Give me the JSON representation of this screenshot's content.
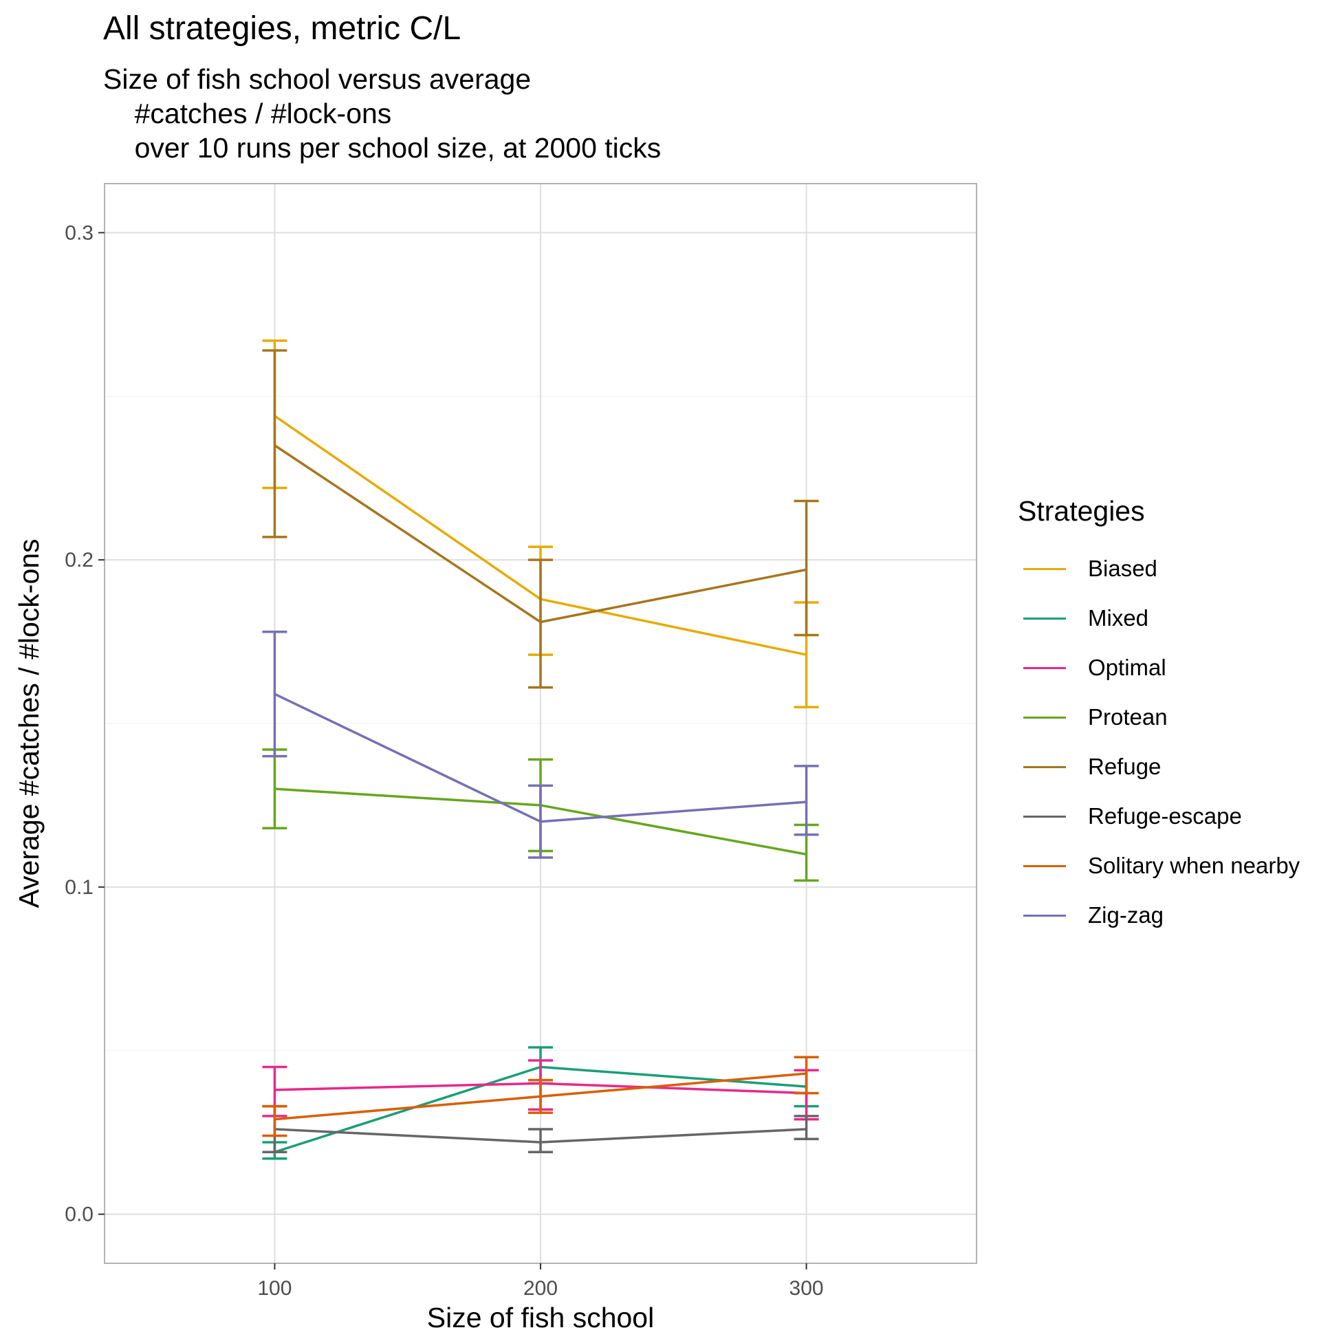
{
  "chart_data": {
    "type": "line",
    "title": "All strategies, metric C/L",
    "subtitle": "Size of fish school versus average\n    #catches / #lock-ons\n    over 10 runs per school size, at 2000 ticks",
    "xlabel": "Size of fish school",
    "ylabel": "Average #catches / #lock-ons",
    "x": [
      100,
      200,
      300
    ],
    "xlim": [
      36,
      364
    ],
    "ylim": [
      -0.015,
      0.315
    ],
    "xticks": [
      "100",
      "200",
      "300"
    ],
    "yticks": [
      "0.0",
      "0.1",
      "0.2",
      "0.3"
    ],
    "grid": true,
    "legend_title": "Strategies",
    "legend_position": "right",
    "series": [
      {
        "name": "Biased",
        "color": "#E6AB02",
        "values": [
          0.244,
          0.188,
          0.171
        ],
        "lower": [
          0.222,
          0.171,
          0.155
        ],
        "upper": [
          0.267,
          0.204,
          0.187
        ]
      },
      {
        "name": "Mixed",
        "color": "#1B9E77",
        "values": [
          0.019,
          0.045,
          0.039
        ],
        "lower": [
          0.017,
          0.04,
          0.033
        ],
        "upper": [
          0.022,
          0.051,
          0.044
        ]
      },
      {
        "name": "Optimal",
        "color": "#E7298A",
        "values": [
          0.038,
          0.04,
          0.037
        ],
        "lower": [
          0.03,
          0.032,
          0.029
        ],
        "upper": [
          0.045,
          0.047,
          0.044
        ]
      },
      {
        "name": "Protean",
        "color": "#66A61E",
        "values": [
          0.13,
          0.125,
          0.11
        ],
        "lower": [
          0.118,
          0.111,
          0.102
        ],
        "upper": [
          0.142,
          0.139,
          0.119
        ]
      },
      {
        "name": "Refuge",
        "color": "#A6761D",
        "values": [
          0.235,
          0.181,
          0.197
        ],
        "lower": [
          0.207,
          0.161,
          0.177
        ],
        "upper": [
          0.264,
          0.2,
          0.218
        ]
      },
      {
        "name": "Refuge-escape",
        "color": "#666666",
        "values": [
          0.026,
          0.022,
          0.026
        ],
        "lower": [
          0.019,
          0.019,
          0.023
        ],
        "upper": [
          0.033,
          0.026,
          0.03
        ]
      },
      {
        "name": "Solitary when nearby",
        "color": "#D95F02",
        "values": [
          0.029,
          0.036,
          0.043
        ],
        "lower": [
          0.024,
          0.031,
          0.037
        ],
        "upper": [
          0.033,
          0.041,
          0.048
        ]
      },
      {
        "name": "Zig-zag",
        "color": "#7570B3",
        "values": [
          0.159,
          0.12,
          0.126
        ],
        "lower": [
          0.14,
          0.109,
          0.116
        ],
        "upper": [
          0.178,
          0.131,
          0.137
        ]
      }
    ]
  }
}
